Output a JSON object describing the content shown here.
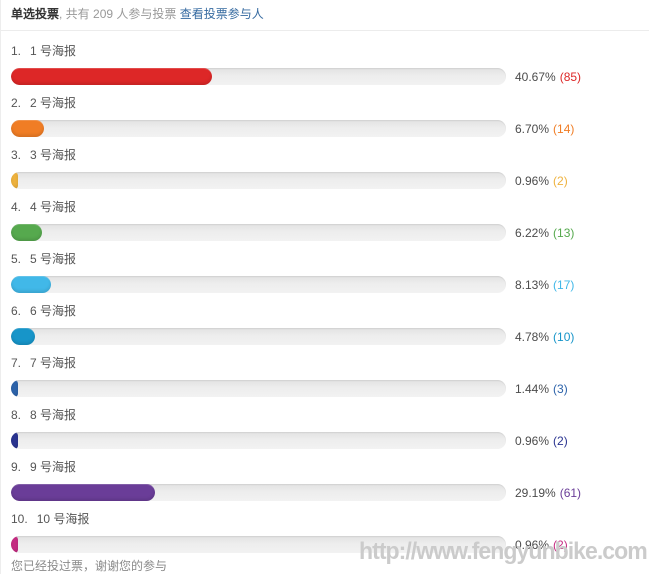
{
  "header": {
    "poll_type": "单选投票",
    "participation": ", 共有 209 人参与投票 ",
    "view_voters_link": "查看投票参与人"
  },
  "chart_data": {
    "type": "bar",
    "orientation": "horizontal",
    "title": "单选投票",
    "total_participants": 209,
    "value_range": [
      0,
      100
    ],
    "track_color": "#ededed",
    "percent_text_color": "#4b4b4b",
    "items": [
      {
        "rank": "1.",
        "name": "1 号海报",
        "percent": 40.67,
        "percent_label": "40.67%",
        "votes": 85,
        "count_label": "(85)",
        "color": "#dd2727"
      },
      {
        "rank": "2.",
        "name": "2 号海报",
        "percent": 6.7,
        "percent_label": "6.70%",
        "votes": 14,
        "count_label": "(14)",
        "color": "#f07d25"
      },
      {
        "rank": "3.",
        "name": "3 号海报",
        "percent": 0.96,
        "percent_label": "0.96%",
        "votes": 2,
        "count_label": "(2)",
        "color": "#eeb23e"
      },
      {
        "rank": "4.",
        "name": "4 号海报",
        "percent": 6.22,
        "percent_label": "6.22%",
        "votes": 13,
        "count_label": "(13)",
        "color": "#56a94e"
      },
      {
        "rank": "5.",
        "name": "5 号海报",
        "percent": 8.13,
        "percent_label": "8.13%",
        "votes": 17,
        "count_label": "(17)",
        "color": "#41b8e8"
      },
      {
        "rank": "6.",
        "name": "6 号海报",
        "percent": 4.78,
        "percent_label": "4.78%",
        "votes": 10,
        "count_label": "(10)",
        "color": "#1795c9"
      },
      {
        "rank": "7.",
        "name": "7 号海报",
        "percent": 1.44,
        "percent_label": "1.44%",
        "votes": 3,
        "count_label": "(3)",
        "color": "#2d63aa"
      },
      {
        "rank": "8.",
        "name": "8 号海报",
        "percent": 0.96,
        "percent_label": "0.96%",
        "votes": 2,
        "count_label": "(2)",
        "color": "#2a3490"
      },
      {
        "rank": "9.",
        "name": "9 号海报",
        "percent": 29.19,
        "percent_label": "29.19%",
        "votes": 61,
        "count_label": "(61)",
        "color": "#6a3d98"
      },
      {
        "rank": "10.",
        "name": "10 号海报",
        "percent": 0.96,
        "percent_label": "0.96%",
        "votes": 2,
        "count_label": "(2)",
        "color": "#c52b82"
      }
    ]
  },
  "footer": {
    "already_voted_message": "您已经投过票，谢谢您的参与",
    "watermark": "http://www.fengyunbike.com"
  }
}
